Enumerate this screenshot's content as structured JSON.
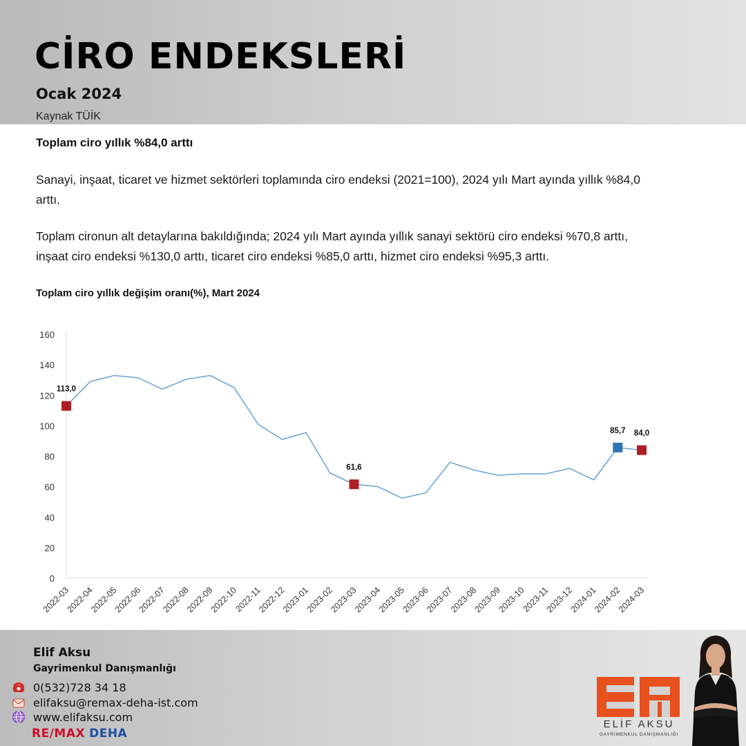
{
  "header": {
    "title": "CİRO ENDEKSLERİ",
    "subtitle": "Ocak 2024",
    "source": "Kaynak TÜİK"
  },
  "content": {
    "headline": "Toplam ciro yıllık %84,0 arttı",
    "paragraph1": "Sanayi, inşaat, ticaret ve hizmet sektörleri toplamında ciro endeksi (2021=100), 2024 yılı Mart ayında yıllık %84,0 arttı.",
    "paragraph2": "Toplam cironun alt detaylarına bakıldığında; 2024 yılı Mart ayında yıllık sanayi sektörü ciro endeksi %70,8 arttı, inşaat ciro endeksi %130,0 arttı, ticaret ciro endeksi %85,0 arttı, hizmet ciro endeksi %95,3 arttı.",
    "chart_title": "Toplam ciro yıllık değişim oranı(%), Mart 2024"
  },
  "chart_data": {
    "type": "line",
    "title": "Toplam ciro yıllık değişim oranı(%), Mart 2024",
    "xlabel": "",
    "ylabel": "",
    "ylim": [
      0,
      160
    ],
    "yticks": [
      0,
      20,
      40,
      60,
      80,
      100,
      120,
      140,
      160
    ],
    "grid": false,
    "categories": [
      "2022-03",
      "2022-04",
      "2022-05",
      "2022-06",
      "2022-07",
      "2022-08",
      "2022-09",
      "2022-10",
      "2022-11",
      "2022-12",
      "2023-01",
      "2023-02",
      "2023-03",
      "2023-04",
      "2023-05",
      "2023-06",
      "2023-07",
      "2023-08",
      "2023-09",
      "2023-10",
      "2023-11",
      "2023-12",
      "2024-01",
      "2024-02",
      "2024-03"
    ],
    "series": [
      {
        "values": [
          113.0,
          129,
          133,
          131.5,
          124,
          130.5,
          133,
          125,
          101,
          91,
          95.5,
          69,
          61.6,
          60,
          52.5,
          56,
          76,
          71,
          67.5,
          68.5,
          68.5,
          72,
          64.5,
          85.7,
          84.0
        ]
      }
    ],
    "line_color": "#5b9bd5",
    "highlights": [
      {
        "category": "2022-03",
        "value": 113.0,
        "label": "113,0",
        "color": "#b01e23"
      },
      {
        "category": "2023-03",
        "value": 61.6,
        "label": "61,6",
        "color": "#b01e23"
      },
      {
        "category": "2024-02",
        "value": 85.7,
        "label": "85,7",
        "color": "#2e75b6"
      },
      {
        "category": "2024-03",
        "value": 84.0,
        "label": "84,0",
        "color": "#b01e23"
      }
    ]
  },
  "footer": {
    "agent_name": "Elif Aksu",
    "agent_role": "Gayrimenkul Danışmanlığı",
    "phone": "0(532)728 34 18",
    "email": "elifaksu@remax-deha-ist.com",
    "website": "www.elifaksu.com",
    "remax": "RE/MAX",
    "office": "DEHA",
    "brand_name": "ELİF AKSU",
    "brand_sub": "GAYRİMENKUL DANIŞMANLIĞI",
    "brand_color": "#e8501e"
  }
}
